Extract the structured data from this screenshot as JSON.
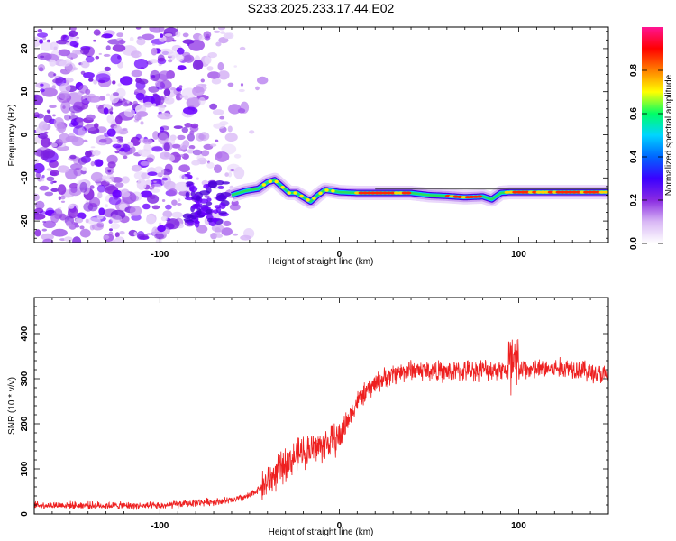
{
  "title": "S233.2025.233.17.44.E02",
  "chart_data": [
    {
      "type": "heatmap",
      "xlabel": "Height of straight line (km)",
      "ylabel": "Frequency (Hz)",
      "xlim": [
        -170,
        150
      ],
      "ylim": [
        -25,
        25
      ],
      "xticks": [
        -100,
        0,
        100
      ],
      "yticks": [
        -20,
        -10,
        0,
        10,
        20
      ],
      "colorbar": {
        "label": "Normalized spectral amplitude",
        "range": [
          0,
          1
        ],
        "ticks": [
          "0.0",
          "0.2",
          "0.4",
          "0.6",
          "0.8"
        ],
        "colors": [
          "#ffffff",
          "#d9b8f5",
          "#8a2be2",
          "#3b00ff",
          "#0066ff",
          "#00d5ff",
          "#00ff66",
          "#ffff00",
          "#ff8000",
          "#ff0000",
          "#ff1493"
        ]
      },
      "ridge": {
        "x": [
          -60,
          -52,
          -45,
          -40,
          -36,
          -32,
          -28,
          -24,
          -20,
          -16,
          -12,
          -8,
          -4,
          0,
          10,
          20,
          30,
          40,
          50,
          60,
          70,
          80,
          85,
          90,
          95,
          100,
          110,
          120,
          130,
          140,
          150
        ],
        "y": [
          -14,
          -13,
          -12.5,
          -11,
          -10.5,
          -12,
          -13.5,
          -13.5,
          -14.5,
          -15.5,
          -14,
          -12.8,
          -13,
          -13.3,
          -13.5,
          -13.5,
          -13.5,
          -13.5,
          -14,
          -14.2,
          -14.5,
          -14.3,
          -15,
          -13.5,
          -13.3,
          -13.3,
          -13.3,
          -13.3,
          -13.3,
          -13.3,
          -13.3
        ]
      }
    },
    {
      "type": "line",
      "xlabel": "Height of straight line (km)",
      "ylabel": "SNR (10 * v/v)",
      "xlim": [
        -170,
        150
      ],
      "ylim": [
        0,
        480
      ],
      "xticks": [
        -100,
        0,
        100
      ],
      "yticks": [
        0,
        100,
        200,
        300,
        400
      ],
      "color": "#ee2020",
      "trend": {
        "x": [
          -170,
          -100,
          -80,
          -60,
          -50,
          -40,
          -30,
          -20,
          -10,
          0,
          10,
          20,
          30,
          40,
          60,
          80,
          90,
          98,
          100,
          110,
          130,
          150
        ],
        "y": [
          20,
          18,
          25,
          30,
          40,
          70,
          110,
          140,
          150,
          170,
          250,
          290,
          310,
          320,
          315,
          320,
          320,
          320,
          320,
          320,
          325,
          305
        ]
      }
    }
  ]
}
